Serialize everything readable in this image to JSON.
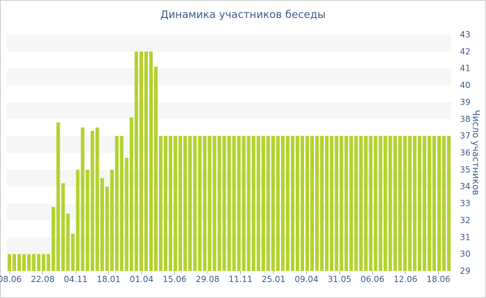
{
  "chart_data": {
    "type": "bar",
    "title": "Динамика участников беседы",
    "ylabel": "Число участников",
    "xlabel": "",
    "ylim": [
      29,
      43
    ],
    "yticks": [
      29,
      30,
      31,
      32,
      33,
      34,
      35,
      36,
      37,
      38,
      39,
      40,
      41,
      42,
      43
    ],
    "y_axis_side": "right",
    "grid": "horizontal alternating bands",
    "bar_color": "#b3d22c",
    "band_color": "#f6f6f6",
    "x_tick_labels": [
      "08.06",
      "22.08",
      "04.11",
      "18.01",
      "01.04",
      "15.06",
      "29.08",
      "11.11",
      "25.01",
      "09.04",
      "31.05",
      "06.06",
      "12.06",
      "18.06"
    ],
    "values": [
      30,
      30,
      30,
      30,
      30,
      30,
      30,
      30,
      30,
      32.8,
      37.8,
      34.2,
      32.4,
      31.2,
      35,
      37.5,
      35,
      37.3,
      37.5,
      34.5,
      34,
      35,
      37,
      37,
      35.7,
      38.1,
      42,
      42,
      42,
      42,
      41.1,
      37,
      37,
      37,
      37,
      37,
      37,
      37,
      37,
      37,
      37,
      37,
      37,
      37,
      37,
      37,
      37,
      37,
      37,
      37,
      37,
      37,
      37,
      37,
      37,
      37,
      37,
      37,
      37,
      37,
      37,
      37,
      37,
      37,
      37,
      37,
      37,
      37,
      37,
      37,
      37,
      37,
      37,
      37,
      37,
      37,
      37,
      37,
      37,
      37,
      37,
      37,
      37,
      37,
      37,
      37,
      37,
      37,
      37,
      37,
      37
    ]
  }
}
